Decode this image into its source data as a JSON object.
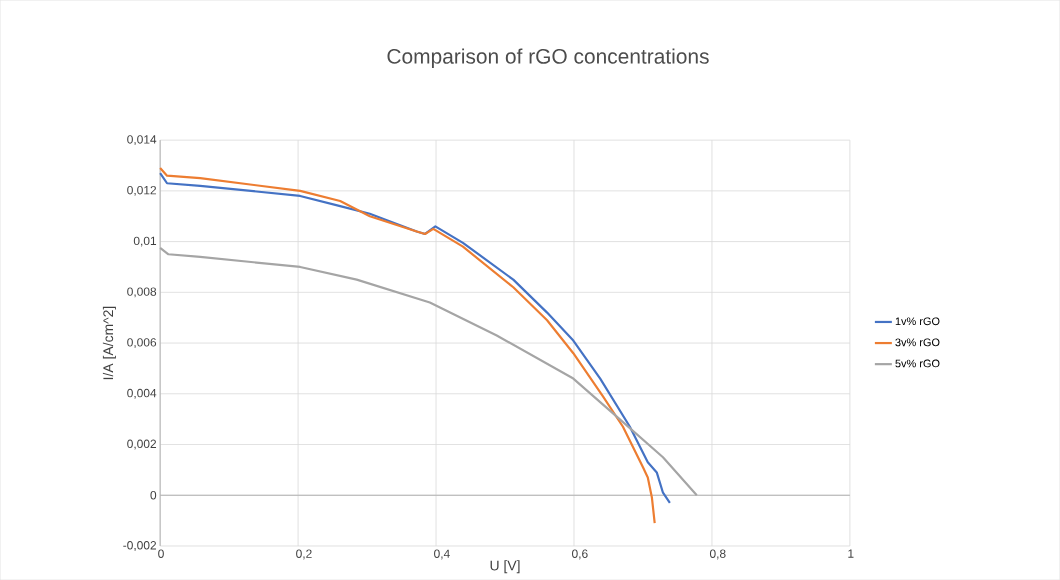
{
  "chart_data": {
    "type": "line",
    "title": "Comparison of rGO concentrations",
    "xlabel": "U [V]",
    "ylabel": "I/A [A/cm^2]",
    "xlim": [
      0,
      1
    ],
    "ylim": [
      -0.002,
      0.014
    ],
    "xticks": [
      {
        "value": 0,
        "label": "0"
      },
      {
        "value": 0.2,
        "label": "0,2"
      },
      {
        "value": 0.4,
        "label": "0,4"
      },
      {
        "value": 0.6,
        "label": "0,6"
      },
      {
        "value": 0.8,
        "label": "0,8"
      },
      {
        "value": 1,
        "label": "1"
      }
    ],
    "yticks": [
      {
        "value": -0.002,
        "label": "-0,002"
      },
      {
        "value": 0,
        "label": "0"
      },
      {
        "value": 0.002,
        "label": "0,002"
      },
      {
        "value": 0.004,
        "label": "0,004"
      },
      {
        "value": 0.006,
        "label": "0,006"
      },
      {
        "value": 0.008,
        "label": "0,008"
      },
      {
        "value": 0.01,
        "label": "0,01"
      },
      {
        "value": 0.012,
        "label": "0,012"
      },
      {
        "value": 0.014,
        "label": "0,014"
      }
    ],
    "grid": true,
    "legend": "right",
    "marker": "none",
    "line_style": "solid",
    "series": [
      {
        "name": "1v% rGO",
        "color": "#4472c4",
        "x": [
          0,
          0.01,
          0.058,
          0.203,
          0.261,
          0.304,
          0.323,
          0.372,
          0.384,
          0.399,
          0.439,
          0.512,
          0.561,
          0.599,
          0.638,
          0.681,
          0.707,
          0.72,
          0.729,
          0.739
        ],
        "values": [
          0.0127,
          0.0123,
          0.0122,
          0.0118,
          0.0114,
          0.0111,
          0.0109,
          0.0104,
          0.0103,
          0.0106,
          0.00995,
          0.0085,
          0.0072,
          0.0061,
          0.0046,
          0.0027,
          0.0013,
          0.0009,
          0.0001,
          -0.0003
        ]
      },
      {
        "name": "3v% rGO",
        "color": "#ed7d31",
        "x": [
          0,
          0.01,
          0.058,
          0.203,
          0.261,
          0.304,
          0.372,
          0.384,
          0.396,
          0.439,
          0.512,
          0.561,
          0.599,
          0.642,
          0.671,
          0.7,
          0.707,
          0.713,
          0.717
        ],
        "values": [
          0.0129,
          0.0126,
          0.0125,
          0.012,
          0.0116,
          0.011,
          0.0104,
          0.0103,
          0.0105,
          0.0098,
          0.0082,
          0.0069,
          0.0056,
          0.0039,
          0.0027,
          0.0011,
          0.0007,
          -0.0001,
          -0.0011
        ]
      },
      {
        "name": "5v% rGO",
        "color": "#a5a5a5",
        "x": [
          0,
          0.012,
          0.058,
          0.203,
          0.285,
          0.391,
          0.488,
          0.599,
          0.662,
          0.729,
          0.778
        ],
        "values": [
          0.00975,
          0.0095,
          0.0094,
          0.009,
          0.0085,
          0.0076,
          0.0063,
          0.0046,
          0.0031,
          0.0015,
          0.0
        ]
      }
    ]
  }
}
